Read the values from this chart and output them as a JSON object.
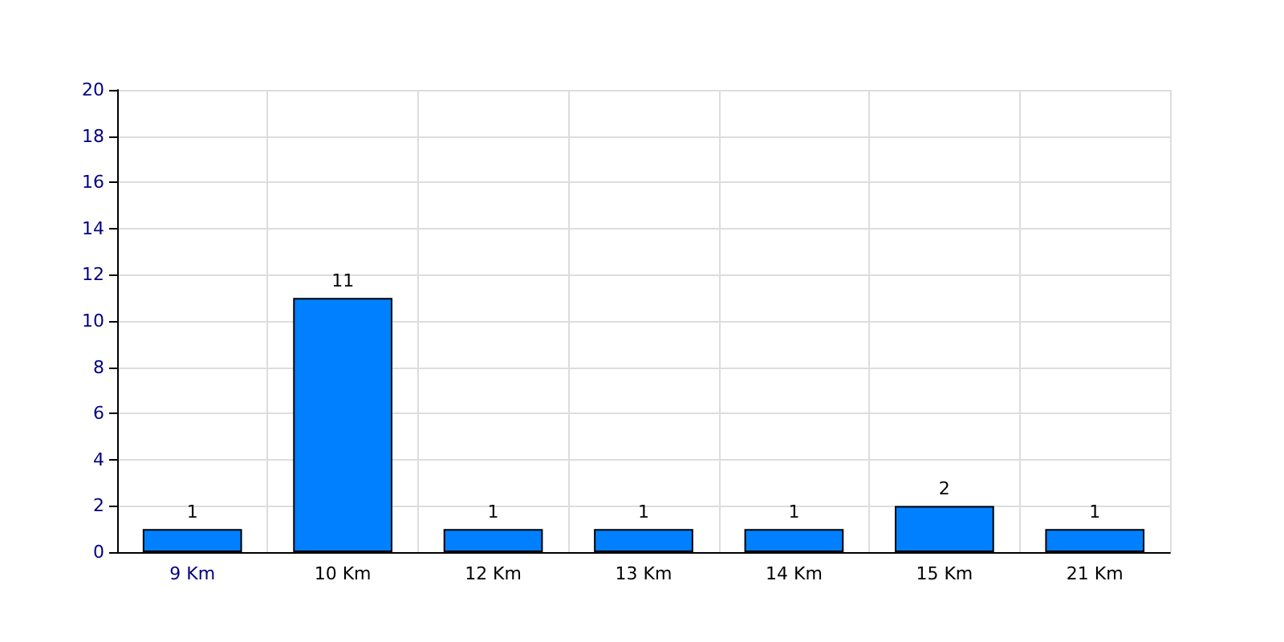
{
  "chart_data": {
    "type": "bar",
    "categories": [
      "9 Km",
      "10 Km",
      "12 Km",
      "13 Km",
      "14 Km",
      "15 Km",
      "21 Km"
    ],
    "values": [
      1,
      11,
      1,
      1,
      1,
      2,
      1
    ],
    "color": "#0080ff",
    "ylim": [
      0,
      20
    ],
    "yticks": [
      0,
      2,
      4,
      6,
      8,
      10,
      12,
      14,
      16,
      18,
      20
    ],
    "grid": true,
    "data_labels": true
  }
}
